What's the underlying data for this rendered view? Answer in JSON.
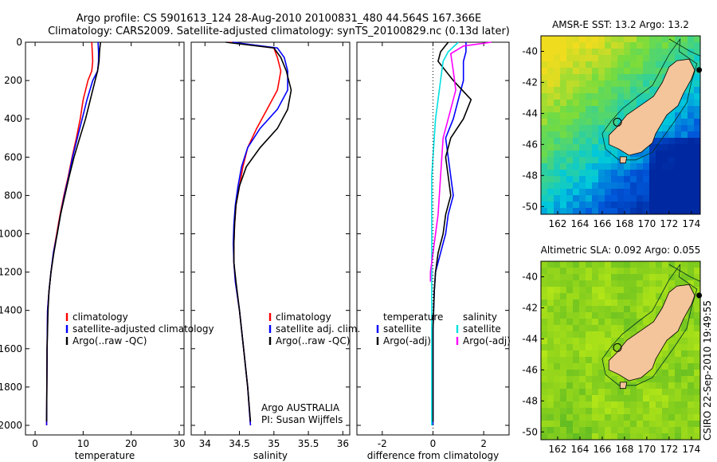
{
  "title_line1": "Argo profile: CS 5901613_124 28-Aug-2010 20100831_480 44.564S 167.366E",
  "title_line2": "Climatology: CARS2009. Satellite-adjusted climatology: synTS_20100829.nc (0.13d later)",
  "chart_data": [
    {
      "type": "line",
      "id": "temperature",
      "xlabel": "temperature",
      "xlim": [
        -2,
        31
      ],
      "ylim": [
        0,
        2050
      ],
      "y_inverted": true,
      "xticks": [
        0,
        10,
        20,
        30
      ],
      "yticks": [
        0,
        200,
        400,
        600,
        800,
        1000,
        1200,
        1400,
        1600,
        1800,
        2000
      ],
      "legend": [
        "climatology",
        "satellite-adjusted climatology",
        "Argo(..raw -QC)"
      ],
      "legend_placement": "bottom-right",
      "series": [
        {
          "name": "climatology",
          "color": "#ff0000",
          "x": [
            11.8,
            11.9,
            12.0,
            11.8,
            11.0,
            10.0,
            9.4,
            8.6,
            7.7,
            6.9,
            6.0,
            5.2,
            4.5,
            3.8,
            3.3,
            2.9,
            2.6,
            2.5,
            2.4
          ],
          "y": [
            0,
            50,
            100,
            150,
            200,
            300,
            400,
            500,
            600,
            700,
            800,
            900,
            1000,
            1100,
            1200,
            1300,
            1400,
            1600,
            2000
          ]
        },
        {
          "name": "satellite-adjusted climatology",
          "color": "#0000ff",
          "x": [
            13.1,
            13.2,
            13.2,
            13.0,
            12.0,
            10.8,
            9.8,
            8.8,
            7.8,
            7.0,
            6.1,
            5.3,
            4.6,
            3.8,
            3.3,
            2.9,
            2.6,
            2.5,
            2.4
          ],
          "y": [
            0,
            50,
            100,
            150,
            200,
            300,
            400,
            500,
            600,
            700,
            800,
            900,
            1000,
            1100,
            1200,
            1300,
            1400,
            1600,
            2000
          ]
        },
        {
          "name": "Argo(..raw -QC)",
          "color": "#000000",
          "x": [
            13.6,
            13.4,
            13.3,
            13.0,
            12.5,
            11.5,
            10.5,
            9.3,
            8.1,
            7.1,
            6.2,
            5.3,
            4.6,
            3.9,
            3.3,
            2.9,
            2.7,
            2.5,
            2.4
          ],
          "y": [
            0,
            50,
            100,
            150,
            200,
            300,
            400,
            500,
            600,
            700,
            800,
            900,
            1000,
            1100,
            1200,
            1300,
            1400,
            1600,
            1980
          ]
        }
      ]
    },
    {
      "type": "line",
      "id": "salinity",
      "xlabel": "salinity",
      "xlim": [
        33.8,
        36.1
      ],
      "ylim": [
        0,
        2050
      ],
      "y_inverted": true,
      "xticks": [
        34,
        34.5,
        35,
        35.5,
        36
      ],
      "annotations": [
        "Argo AUSTRALIA",
        "PI: Susan Wijffels"
      ],
      "legend": [
        "climatology",
        "satellite adj. clim.",
        "Argo(..raw -QC)"
      ],
      "legend_placement": "bottom-right",
      "series": [
        {
          "name": "climatology",
          "color": "#ff0000",
          "x": [
            34.35,
            35.0,
            35.05,
            35.1,
            35.05,
            34.9,
            34.75,
            34.62,
            34.55,
            34.5,
            34.45,
            34.43,
            34.42,
            34.42,
            34.44,
            34.5,
            34.56,
            34.62,
            34.66
          ],
          "y": [
            0,
            30,
            80,
            150,
            250,
            350,
            450,
            550,
            650,
            750,
            850,
            950,
            1050,
            1150,
            1250,
            1400,
            1600,
            1800,
            2000
          ]
        },
        {
          "name": "satellite adj. clim.",
          "color": "#0000ff",
          "x": [
            34.4,
            35.05,
            35.15,
            35.2,
            35.2,
            35.05,
            34.8,
            34.62,
            34.53,
            34.48,
            34.44,
            34.42,
            34.41,
            34.42,
            34.44,
            34.5,
            34.56,
            34.62,
            34.66
          ],
          "y": [
            0,
            30,
            80,
            150,
            250,
            350,
            450,
            550,
            650,
            750,
            850,
            950,
            1050,
            1150,
            1250,
            1400,
            1600,
            1800,
            2000
          ]
        },
        {
          "name": "Argo(..raw -QC)",
          "color": "#000000",
          "x": [
            34.3,
            35.0,
            35.1,
            35.18,
            35.25,
            35.2,
            35.05,
            34.8,
            34.6,
            34.5,
            34.45,
            34.43,
            34.42,
            34.42,
            34.45,
            34.5,
            34.56,
            34.62,
            34.66
          ],
          "y": [
            0,
            30,
            80,
            150,
            250,
            350,
            450,
            550,
            650,
            750,
            850,
            950,
            1050,
            1150,
            1250,
            1400,
            1600,
            1800,
            1980
          ]
        }
      ]
    },
    {
      "type": "line",
      "id": "difference",
      "xlabel": "difference from climatology",
      "xlim": [
        -3,
        3
      ],
      "ylim": [
        0,
        2050
      ],
      "y_inverted": true,
      "xticks": [
        -2,
        0,
        2
      ],
      "legend_temperature": [
        "temperature",
        "satellite",
        "Argo(-adj)"
      ],
      "legend_salinity": [
        "salinity",
        "satellite",
        "Argo(-adj)"
      ],
      "series": [
        {
          "name": "satellite",
          "group": "temperature",
          "color": "#0000ff",
          "x": [
            1.3,
            1.3,
            1.2,
            1.2,
            1.0,
            0.8,
            0.5,
            0.6,
            0.7,
            0.8,
            0.6,
            0.5,
            0.3,
            0.1,
            0.05,
            0.0,
            0.0,
            0.0
          ],
          "y": [
            0,
            50,
            100,
            200,
            300,
            400,
            500,
            600,
            700,
            800,
            900,
            1000,
            1100,
            1200,
            1300,
            1500,
            1800,
            2000
          ]
        },
        {
          "name": "Argo(-adj)",
          "group": "temperature",
          "color": "#000000",
          "x": [
            0.6,
            0.3,
            0.2,
            0.8,
            1.5,
            1.2,
            0.7,
            0.5,
            0.6,
            0.7,
            0.5,
            0.4,
            0.2,
            0.1,
            0.05,
            0.0,
            0.0,
            0.0
          ],
          "y": [
            0,
            50,
            100,
            200,
            300,
            400,
            500,
            600,
            700,
            800,
            900,
            1000,
            1100,
            1200,
            1300,
            1500,
            1800,
            1980
          ]
        },
        {
          "name": "satellite",
          "group": "salinity",
          "color": "#00e0e0",
          "x": [
            1.0,
            0.6,
            0.4,
            0.3,
            0.2,
            0.1,
            0.05,
            0.0,
            -0.05,
            -0.05,
            -0.05,
            -0.05,
            -0.05,
            -0.05,
            -0.05,
            -0.05,
            -0.05
          ],
          "y": [
            0,
            50,
            100,
            200,
            300,
            400,
            500,
            600,
            700,
            800,
            900,
            1000,
            1100,
            1200,
            1500,
            1800,
            2000
          ]
        },
        {
          "name": "Argo(-adj)",
          "group": "salinity",
          "color": "#ff00ff",
          "x": [
            2.3,
            1.2,
            0.7,
            0.8,
            0.9,
            0.6,
            0.4,
            0.3,
            0.2,
            0.1,
            0.0,
            -0.1,
            -0.1
          ],
          "y": [
            0,
            20,
            60,
            150,
            250,
            400,
            500,
            700,
            900,
            1000,
            1100,
            1200,
            1250
          ]
        }
      ]
    },
    {
      "type": "heatmap",
      "id": "sst-map",
      "title": "AMSR-E SST: 13.2 Argo: 13.2",
      "xlim": [
        160.5,
        174.8
      ],
      "ylim": [
        -50.5,
        -39
      ],
      "xticks": [
        162,
        164,
        166,
        168,
        170,
        172,
        174
      ],
      "yticks": [
        -40,
        -42,
        -44,
        -46,
        -48,
        -50
      ],
      "argo_position": [
        167.366,
        -44.564
      ]
    },
    {
      "type": "heatmap",
      "id": "sla-map",
      "title": "Altimetric SLA: 0.092 Argo: 0.055",
      "xlim": [
        160.5,
        174.8
      ],
      "ylim": [
        -50.5,
        -39
      ],
      "xticks": [
        162,
        164,
        166,
        168,
        170,
        172,
        174
      ],
      "yticks": [
        -40,
        -42,
        -44,
        -46,
        -48,
        -50
      ],
      "argo_position": [
        167.366,
        -44.564
      ]
    }
  ],
  "footer_stamp": "CSIRO 22-Sep-2010 19:49:55"
}
